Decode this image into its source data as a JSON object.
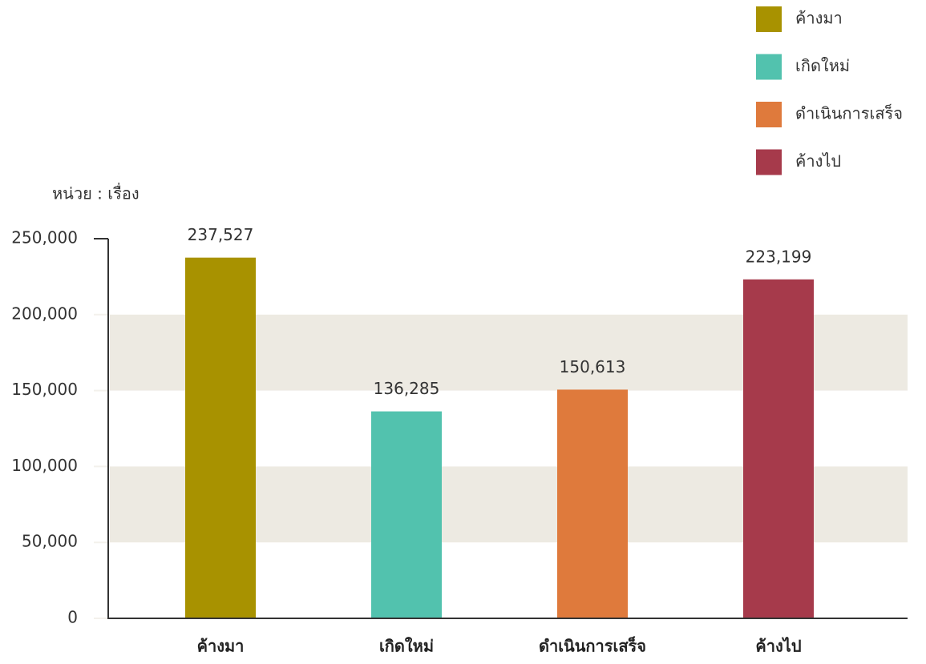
{
  "chart_data": {
    "type": "bar",
    "y_axis_label": "หน่วย : เรื่อง",
    "categories": [
      "ค้างมา",
      "เกิดใหม่",
      "ดำเนินการเสร็จ",
      "ค้างไป"
    ],
    "values": [
      237527,
      136285,
      150613,
      223199
    ],
    "value_labels": [
      "237,527",
      "136,285",
      "150,613",
      "223,199"
    ],
    "colors": [
      "#a89200",
      "#52c2ae",
      "#df7a3c",
      "#a63a4b"
    ],
    "ylim": [
      0,
      250000
    ],
    "yticks": [
      0,
      {
        "value": 50000,
        "label": "50,000"
      },
      {
        "value": 100000,
        "label": "100,000"
      },
      {
        "value": 150000,
        "label": "150,000"
      },
      {
        "value": 200000,
        "label": "200,000"
      },
      {
        "value": 250000,
        "label": "250,000"
      }
    ],
    "banded_grid": true,
    "legend": "top-right"
  }
}
